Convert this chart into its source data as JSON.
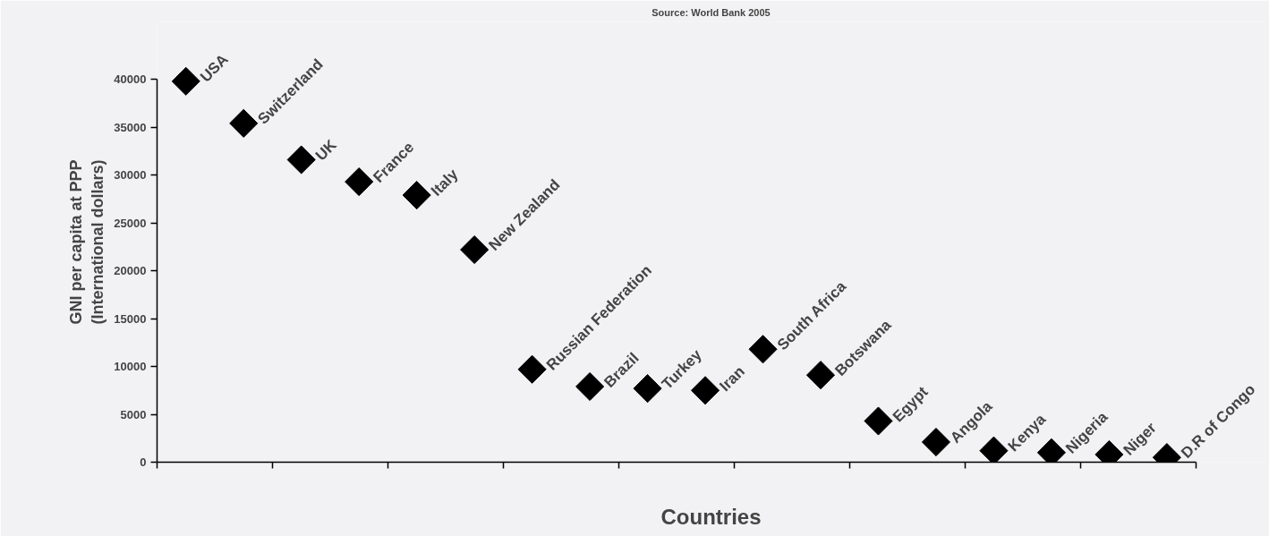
{
  "chart_data": {
    "type": "scatter",
    "title": "Source: World Bank 2005",
    "xlabel": "Countries",
    "ylabel": "GNI per capita at PPP\n(International dollars)",
    "categories": [
      null,
      null,
      null,
      null,
      null,
      null,
      null,
      null,
      null,
      null,
      null,
      null,
      null,
      null,
      null,
      null,
      null,
      null
    ],
    "values": [
      39800,
      35400,
      31600,
      29300,
      27900,
      22200,
      9700,
      7900,
      7700,
      7500,
      11800,
      9100,
      4300,
      2100,
      1200,
      1000,
      800,
      500
    ],
    "color": "#000000",
    "marker": "diamond",
    "grid": false,
    "tick_labels": "y",
    "ylim": [
      0,
      40000
    ],
    "yticks": [
      0,
      5000,
      10000,
      15000,
      20000,
      25000,
      30000,
      35000,
      40000
    ],
    "annotations": [
      "USA",
      "Switzerland",
      "UK",
      "France",
      "Italy",
      "New Zealand",
      "Russian Federation",
      "Brazil",
      "Turkey",
      "Iran",
      "South Africa",
      "Botswana",
      "Egypt",
      "Angola",
      "Kenya",
      "Nigeria",
      "Niger",
      "D.R of Congo"
    ]
  }
}
